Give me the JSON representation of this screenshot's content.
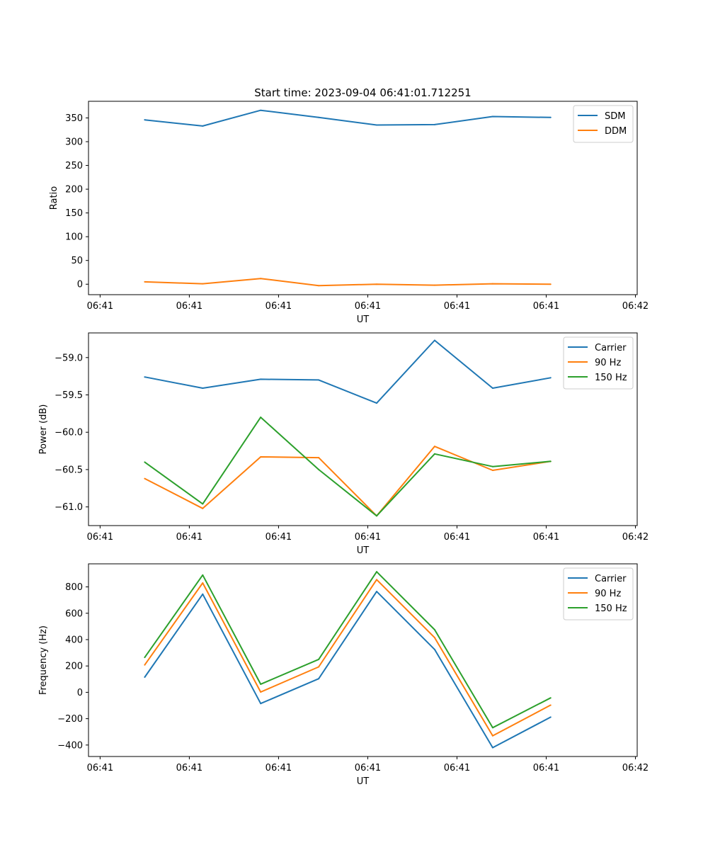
{
  "figure_title": "Start time: 2023-09-04 06:41:01.712251",
  "colors": {
    "blue": "#1f77b4",
    "orange": "#ff7f0e",
    "green": "#2ca02c"
  },
  "chart_data": [
    {
      "type": "line",
      "xlabel": "UT",
      "ylabel": "Ratio",
      "x_tick_labels": [
        "06:41",
        "06:41",
        "06:41",
        "06:41",
        "06:41",
        "06:41",
        "06:42"
      ],
      "y_ticks": [
        0,
        50,
        100,
        150,
        200,
        250,
        300,
        350
      ],
      "y_tick_labels": [
        "0",
        "50",
        "100",
        "150",
        "200",
        "250",
        "300",
        "350"
      ],
      "ylim": [
        -22,
        385
      ],
      "x_points": [
        0.5,
        1.15,
        1.8,
        2.45,
        3.1,
        3.75,
        4.4,
        5.05
      ],
      "xlim": [
        -0.13,
        6.02
      ],
      "x_tick_positions": [
        0,
        1,
        2,
        3,
        4,
        5,
        6
      ],
      "legend_position": "top-right",
      "series": [
        {
          "name": "SDM",
          "color": "#1f77b4",
          "values": [
            346,
            333,
            366,
            351,
            335,
            336,
            353,
            351
          ]
        },
        {
          "name": "DDM",
          "color": "#ff7f0e",
          "values": [
            5,
            1,
            12,
            -3,
            0,
            -2,
            1,
            0
          ]
        }
      ]
    },
    {
      "type": "line",
      "xlabel": "UT",
      "ylabel": "Power (dB)",
      "x_tick_labels": [
        "06:41",
        "06:41",
        "06:41",
        "06:41",
        "06:41",
        "06:41",
        "06:42"
      ],
      "y_ticks": [
        -61.0,
        -60.5,
        -60.0,
        -59.5,
        -59.0
      ],
      "y_tick_labels": [
        "−61.0",
        "−60.5",
        "−60.0",
        "−59.5",
        "−59.0"
      ],
      "ylim": [
        -61.25,
        -58.67
      ],
      "x_points": [
        0.5,
        1.15,
        1.8,
        2.45,
        3.1,
        3.75,
        4.4,
        5.05
      ],
      "xlim": [
        -0.13,
        6.02
      ],
      "x_tick_positions": [
        0,
        1,
        2,
        3,
        4,
        5,
        6
      ],
      "legend_position": "top-right",
      "series": [
        {
          "name": "Carrier",
          "color": "#1f77b4",
          "values": [
            -59.26,
            -59.41,
            -59.29,
            -59.3,
            -59.61,
            -58.77,
            -59.41,
            -59.27
          ]
        },
        {
          "name": "90 Hz",
          "color": "#ff7f0e",
          "values": [
            -60.62,
            -61.02,
            -60.33,
            -60.34,
            -61.12,
            -60.19,
            -60.51,
            -60.39
          ]
        },
        {
          "name": "150 Hz",
          "color": "#2ca02c",
          "values": [
            -60.4,
            -60.96,
            -59.8,
            -60.5,
            -61.12,
            -60.29,
            -60.46,
            -60.39
          ]
        }
      ]
    },
    {
      "type": "line",
      "xlabel": "UT",
      "ylabel": "Frequency (Hz)",
      "x_tick_labels": [
        "06:41",
        "06:41",
        "06:41",
        "06:41",
        "06:41",
        "06:41",
        "06:42"
      ],
      "y_ticks": [
        -400,
        -200,
        0,
        200,
        400,
        600,
        800
      ],
      "y_tick_labels": [
        "−400",
        "−200",
        "0",
        "200",
        "400",
        "600",
        "800"
      ],
      "ylim": [
        -487,
        975
      ],
      "x_points": [
        0.5,
        1.15,
        1.8,
        2.45,
        3.1,
        3.75,
        4.4,
        5.05
      ],
      "xlim": [
        -0.13,
        6.02
      ],
      "x_tick_positions": [
        0,
        1,
        2,
        3,
        4,
        5,
        6
      ],
      "legend_position": "top-right",
      "series": [
        {
          "name": "Carrier",
          "color": "#1f77b4",
          "values": [
            115,
            745,
            -85,
            103,
            765,
            325,
            -420,
            -188
          ]
        },
        {
          "name": "90 Hz",
          "color": "#ff7f0e",
          "values": [
            208,
            830,
            2,
            193,
            855,
            415,
            -330,
            -97
          ]
        },
        {
          "name": "150 Hz",
          "color": "#2ca02c",
          "values": [
            265,
            890,
            62,
            250,
            915,
            475,
            -268,
            -42
          ]
        }
      ]
    }
  ]
}
